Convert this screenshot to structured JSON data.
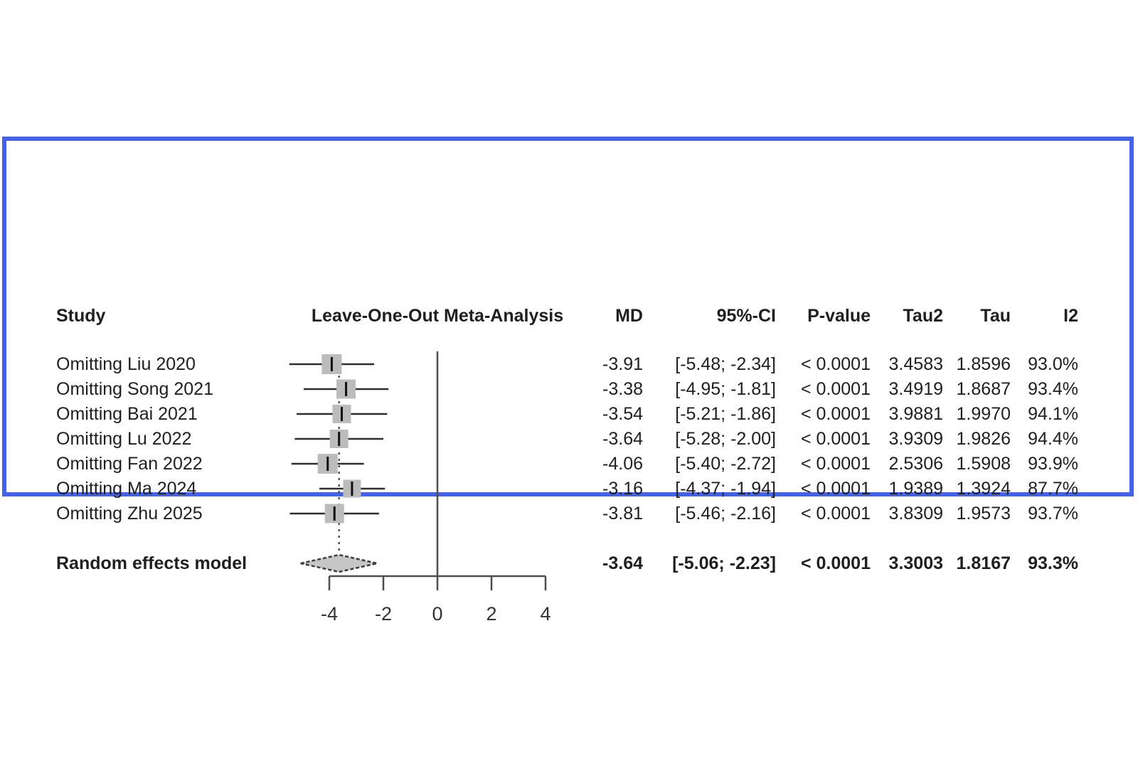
{
  "frame": {
    "border_color": "#4462e8"
  },
  "chart_data": {
    "type": "forest",
    "title": "Leave-One-Out Meta-Analysis",
    "effect_measure": "MD",
    "columns": {
      "study": "Study",
      "plot": "Leave-One-Out Meta-Analysis",
      "md": "MD",
      "ci": "95%-CI",
      "pvalue": "P-value",
      "tau2": "Tau2",
      "tau": "Tau",
      "i2": "I2"
    },
    "axis": {
      "ticks": [
        -4,
        -2,
        0,
        2,
        4
      ],
      "xlim": [
        -5.6,
        4.2
      ],
      "reference_line": 0
    },
    "studies": [
      {
        "label": "Omitting Liu 2020",
        "md": -3.91,
        "ci": [
          -5.48,
          -2.34
        ],
        "md_text": "-3.91",
        "ci_text": "[-5.48; -2.34]",
        "pvalue": "< 0.0001",
        "tau2": "3.4583",
        "tau": "1.8596",
        "i2": "93.0%",
        "marker": 28
      },
      {
        "label": "Omitting Song 2021",
        "md": -3.38,
        "ci": [
          -4.95,
          -1.81
        ],
        "md_text": "-3.38",
        "ci_text": "[-4.95; -1.81]",
        "pvalue": "< 0.0001",
        "tau2": "3.4919",
        "tau": "1.8687",
        "i2": "93.4%",
        "marker": 27
      },
      {
        "label": "Omitting Bai 2021",
        "md": -3.54,
        "ci": [
          -5.21,
          -1.86
        ],
        "md_text": "-3.54",
        "ci_text": "[-5.21; -1.86]",
        "pvalue": "< 0.0001",
        "tau2": "3.9881",
        "tau": "1.9970",
        "i2": "94.1%",
        "marker": 26
      },
      {
        "label": "Omitting Lu 2022",
        "md": -3.64,
        "ci": [
          -5.28,
          -2.0
        ],
        "md_text": "-3.64",
        "ci_text": "[-5.28; -2.00]",
        "pvalue": "< 0.0001",
        "tau2": "3.9309",
        "tau": "1.9826",
        "i2": "94.4%",
        "marker": 26
      },
      {
        "label": "Omitting Fan 2022",
        "md": -4.06,
        "ci": [
          -5.4,
          -2.72
        ],
        "md_text": "-4.06",
        "ci_text": "[-5.40; -2.72]",
        "pvalue": "< 0.0001",
        "tau2": "2.5306",
        "tau": "1.5908",
        "i2": "93.9%",
        "marker": 28
      },
      {
        "label": "Omitting Ma 2024",
        "md": -3.16,
        "ci": [
          -4.37,
          -1.94
        ],
        "md_text": "-3.16",
        "ci_text": "[-4.37; -1.94]",
        "pvalue": "< 0.0001",
        "tau2": "1.9389",
        "tau": "1.3924",
        "i2": "87.7%",
        "marker": 25
      },
      {
        "label": "Omitting Zhu 2025",
        "md": -3.81,
        "ci": [
          -5.46,
          -2.16
        ],
        "md_text": "-3.81",
        "ci_text": "[-5.46; -2.16]",
        "pvalue": "< 0.0001",
        "tau2": "3.8309",
        "tau": "1.9573",
        "i2": "93.7%",
        "marker": 27
      }
    ],
    "overall": {
      "label": "Random effects model",
      "md": -3.64,
      "ci": [
        -5.06,
        -2.23
      ],
      "md_text": "-3.64",
      "ci_text": "[-5.06; -2.23]",
      "pvalue": "< 0.0001",
      "tau2": "3.3003",
      "tau": "1.8167",
      "i2": "93.3%"
    },
    "colors": {
      "marker_fill": "#bcbcbc",
      "diamond_fill": "#c6c6c6",
      "diamond_stroke": "#3d3d3d",
      "ci_line": "#2e2e2e",
      "axis": "#4d4d4d",
      "text": "#1f1f1f"
    }
  }
}
